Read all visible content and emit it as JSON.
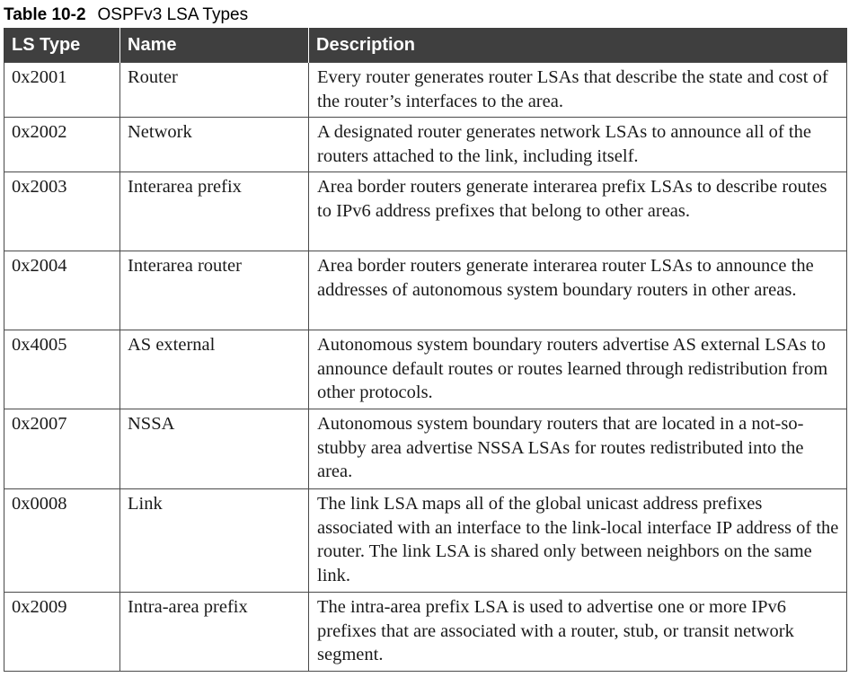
{
  "caption": {
    "number": "Table 10-2",
    "title": "OSPFv3 LSA Types"
  },
  "table": {
    "headers": [
      "LS Type",
      "Name",
      "Description"
    ],
    "rows": [
      {
        "ls_type": "0x2001",
        "name": "Router",
        "description": "Every router generates router LSAs that describe the state and cost of the router’s interfaces to the area."
      },
      {
        "ls_type": "0x2002",
        "name": "Network",
        "description": "A designated router generates network LSAs to announce all of the routers attached to the link, including itself."
      },
      {
        "ls_type": "0x2003",
        "name": "Interarea prefix",
        "description": "Area border routers generate interarea prefix LSAs to describe routes to IPv6 address prefixes that belong to other areas."
      },
      {
        "ls_type": "0x2004",
        "name": "Interarea router",
        "description": "Area border routers generate interarea router LSAs to announce the addresses of autonomous system boundary routers in other areas."
      },
      {
        "ls_type": "0x4005",
        "name": "AS external",
        "description": "Autonomous system boundary routers advertise AS external LSAs to announce default routes or routes learned through redistribution from other protocols."
      },
      {
        "ls_type": "0x2007",
        "name": "NSSA",
        "description": "Autonomous system boundary routers that are located in a not-so-stubby area advertise NSSA LSAs for routes redistributed into the area."
      },
      {
        "ls_type": "0x0008",
        "name": "Link",
        "description": "The link LSA maps all of the global unicast address prefixes associated with an interface to the link-local interface IP address of the router. The link LSA is shared only between neighbors on the same link."
      },
      {
        "ls_type": "0x2009",
        "name": "Intra-area prefix",
        "description": "The intra-area prefix LSA is used to advertise one or more IPv6 prefixes that are associated with a router, stub, or transit network segment."
      }
    ]
  }
}
